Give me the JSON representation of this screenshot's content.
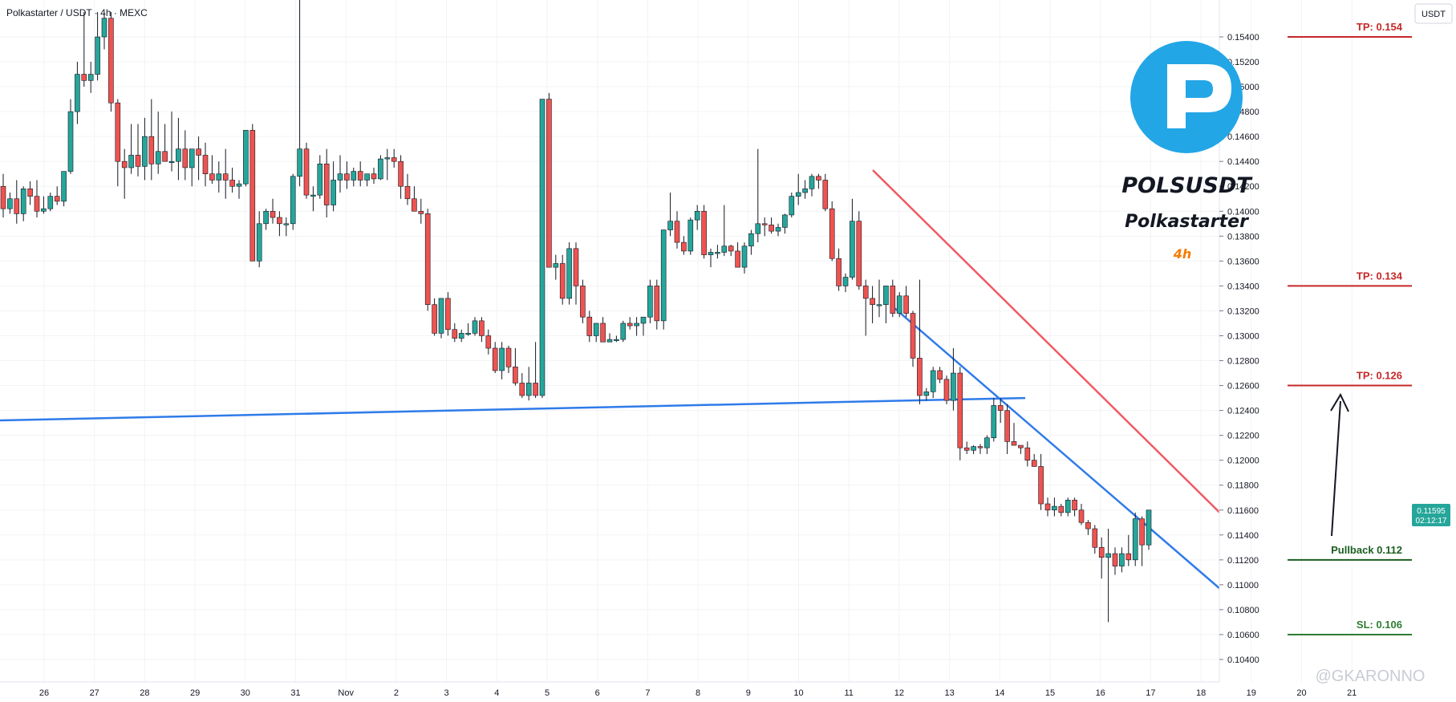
{
  "header": {
    "symbol_line": "Polkastarter / USDT · 4h · MEXC"
  },
  "currency_button": "USDT",
  "logo": {
    "ticker": "POLSUSDT",
    "name": "Polkastarter",
    "timeframe": "4h"
  },
  "watermark": "@GKARONNO",
  "price_tag": {
    "price": "0.11595",
    "countdown": "02:12:17"
  },
  "levels": [
    {
      "label": "TP: 0.154",
      "price": 0.154,
      "color": "#c62828"
    },
    {
      "label": "TP: 0.134",
      "price": 0.134,
      "color": "#c62828"
    },
    {
      "label": "TP: 0.126",
      "price": 0.126,
      "color": "#c62828"
    },
    {
      "label": "Pullback 0.112",
      "price": 0.112,
      "color": "#1b5e20"
    },
    {
      "label": "SL: 0.106",
      "price": 0.106,
      "color": "#2e7d32"
    }
  ],
  "colors": {
    "up": "#26a69a",
    "down": "#ef5350",
    "channel_upper": "#f05a64",
    "channel_lower": "#2f7bea",
    "support": "#2f7bea"
  },
  "chart_data": {
    "type": "candlestick",
    "title": "Polkastarter / USDT · 4h · MEXC",
    "x_ticks": [
      "26",
      "27",
      "28",
      "29",
      "30",
      "31",
      "Nov",
      "2",
      "3",
      "4",
      "5",
      "6",
      "7",
      "8",
      "9",
      "10",
      "11",
      "12",
      "13",
      "14",
      "15",
      "16",
      "17",
      "18",
      "19",
      "20",
      "21"
    ],
    "y_ticks": [
      "0.10400",
      "0.10600",
      "0.10800",
      "0.11000",
      "0.11200",
      "0.11400",
      "0.11600",
      "0.11800",
      "0.12000",
      "0.12200",
      "0.12400",
      "0.12600",
      "0.12800",
      "0.13000",
      "0.13200",
      "0.13400",
      "0.13600",
      "0.13800",
      "0.14000",
      "0.14200",
      "0.14400",
      "0.14600",
      "0.14800",
      "0.15000",
      "0.15200",
      "0.15400"
    ],
    "ylim": [
      0.1026,
      0.1566
    ],
    "ohlc": [
      [
        0.142,
        0.143,
        0.1395,
        0.1402
      ],
      [
        0.1402,
        0.1415,
        0.1398,
        0.141
      ],
      [
        0.141,
        0.1425,
        0.139,
        0.1398
      ],
      [
        0.1398,
        0.142,
        0.1392,
        0.1418
      ],
      [
        0.1418,
        0.1424,
        0.1405,
        0.1412
      ],
      [
        0.1412,
        0.1425,
        0.1395,
        0.14
      ],
      [
        0.14,
        0.1412,
        0.1398,
        0.1402
      ],
      [
        0.1402,
        0.1415,
        0.14,
        0.1412
      ],
      [
        0.1412,
        0.142,
        0.1405,
        0.1408
      ],
      [
        0.1408,
        0.143,
        0.1404,
        0.1432
      ],
      [
        0.1432,
        0.149,
        0.143,
        0.148
      ],
      [
        0.148,
        0.152,
        0.147,
        0.151
      ],
      [
        0.151,
        0.156,
        0.15,
        0.1505
      ],
      [
        0.1505,
        0.152,
        0.1495,
        0.151
      ],
      [
        0.151,
        0.156,
        0.1505,
        0.154
      ],
      [
        0.154,
        0.156,
        0.153,
        0.1555
      ],
      [
        0.1555,
        0.156,
        0.148,
        0.1487
      ],
      [
        0.1487,
        0.149,
        0.142,
        0.144
      ],
      [
        0.144,
        0.145,
        0.141,
        0.1435
      ],
      [
        0.1435,
        0.147,
        0.143,
        0.1445
      ],
      [
        0.1445,
        0.147,
        0.1428,
        0.1436
      ],
      [
        0.1436,
        0.1475,
        0.1425,
        0.146
      ],
      [
        0.146,
        0.149,
        0.1425,
        0.1438
      ],
      [
        0.1438,
        0.148,
        0.143,
        0.1448
      ],
      [
        0.1448,
        0.147,
        0.144,
        0.144
      ],
      [
        0.144,
        0.148,
        0.1432,
        0.144
      ],
      [
        0.144,
        0.1475,
        0.1425,
        0.145
      ],
      [
        0.145,
        0.1465,
        0.1425,
        0.1435
      ],
      [
        0.1435,
        0.145,
        0.142,
        0.145
      ],
      [
        0.145,
        0.146,
        0.1425,
        0.1445
      ],
      [
        0.1445,
        0.1455,
        0.142,
        0.143
      ],
      [
        0.143,
        0.1445,
        0.1422,
        0.1425
      ],
      [
        0.1425,
        0.144,
        0.1415,
        0.143
      ],
      [
        0.143,
        0.145,
        0.141,
        0.1425
      ],
      [
        0.1425,
        0.1435,
        0.1415,
        0.142
      ],
      [
        0.142,
        0.1425,
        0.141,
        0.1422
      ],
      [
        0.1422,
        0.1465,
        0.142,
        0.1465
      ],
      [
        0.1465,
        0.147,
        0.136,
        0.136
      ],
      [
        0.136,
        0.14,
        0.1355,
        0.139
      ],
      [
        0.139,
        0.1402,
        0.1385,
        0.14
      ],
      [
        0.14,
        0.141,
        0.139,
        0.1395
      ],
      [
        0.1395,
        0.14,
        0.138,
        0.139
      ],
      [
        0.139,
        0.1395,
        0.138,
        0.139
      ],
      [
        0.139,
        0.143,
        0.1385,
        0.1428
      ],
      [
        0.1428,
        0.159,
        0.142,
        0.145
      ],
      [
        0.145,
        0.1455,
        0.141,
        0.1413
      ],
      [
        0.1413,
        0.142,
        0.14,
        0.1413
      ],
      [
        0.1413,
        0.1445,
        0.141,
        0.1438
      ],
      [
        0.1438,
        0.145,
        0.1395,
        0.1405
      ],
      [
        0.1405,
        0.144,
        0.14,
        0.1425
      ],
      [
        0.1425,
        0.1445,
        0.1415,
        0.143
      ],
      [
        0.143,
        0.144,
        0.1418,
        0.1425
      ],
      [
        0.1425,
        0.1435,
        0.142,
        0.1432
      ],
      [
        0.1432,
        0.144,
        0.142,
        0.1425
      ],
      [
        0.1425,
        0.143,
        0.142,
        0.143
      ],
      [
        0.143,
        0.1435,
        0.1422,
        0.1426
      ],
      [
        0.1426,
        0.1445,
        0.1425,
        0.1442
      ],
      [
        0.1442,
        0.145,
        0.1425,
        0.1443
      ],
      [
        0.1443,
        0.145,
        0.1435,
        0.144
      ],
      [
        0.144,
        0.1445,
        0.141,
        0.142
      ],
      [
        0.142,
        0.143,
        0.1405,
        0.141
      ],
      [
        0.141,
        0.142,
        0.14,
        0.14
      ],
      [
        0.14,
        0.141,
        0.139,
        0.1398
      ],
      [
        0.1398,
        0.1402,
        0.132,
        0.1325
      ],
      [
        0.1325,
        0.133,
        0.13,
        0.1302
      ],
      [
        0.1302,
        0.133,
        0.1298,
        0.133
      ],
      [
        0.133,
        0.1335,
        0.13,
        0.1305
      ],
      [
        0.1305,
        0.131,
        0.1295,
        0.1298
      ],
      [
        0.1298,
        0.1305,
        0.1295,
        0.1302
      ],
      [
        0.1302,
        0.131,
        0.13,
        0.1302
      ],
      [
        0.1302,
        0.1315,
        0.13,
        0.1312
      ],
      [
        0.1312,
        0.1315,
        0.1295,
        0.13
      ],
      [
        0.13,
        0.1305,
        0.1285,
        0.129
      ],
      [
        0.129,
        0.1295,
        0.127,
        0.1272
      ],
      [
        0.1272,
        0.1295,
        0.1265,
        0.129
      ],
      [
        0.129,
        0.1292,
        0.127,
        0.1275
      ],
      [
        0.1275,
        0.129,
        0.126,
        0.1262
      ],
      [
        0.1262,
        0.127,
        0.125,
        0.1252
      ],
      [
        0.1252,
        0.1275,
        0.1248,
        0.1262
      ],
      [
        0.1262,
        0.1295,
        0.125,
        0.1252
      ],
      [
        0.1252,
        0.149,
        0.125,
        0.149
      ],
      [
        0.149,
        0.1495,
        0.1355,
        0.1355
      ],
      [
        0.1355,
        0.1365,
        0.1345,
        0.1358
      ],
      [
        0.1358,
        0.1365,
        0.1325,
        0.133
      ],
      [
        0.133,
        0.1375,
        0.1325,
        0.137
      ],
      [
        0.137,
        0.1375,
        0.1325,
        0.134
      ],
      [
        0.134,
        0.1345,
        0.131,
        0.1315
      ],
      [
        0.1315,
        0.132,
        0.1295,
        0.13
      ],
      [
        0.13,
        0.131,
        0.1295,
        0.131
      ],
      [
        0.131,
        0.1315,
        0.1295,
        0.1295
      ],
      [
        0.1295,
        0.1302,
        0.1295,
        0.1297
      ],
      [
        0.1297,
        0.13,
        0.1295,
        0.1297
      ],
      [
        0.1297,
        0.1312,
        0.1295,
        0.131
      ],
      [
        0.131,
        0.1315,
        0.1305,
        0.1308
      ],
      [
        0.1308,
        0.1315,
        0.13,
        0.131
      ],
      [
        0.131,
        0.1315,
        0.13,
        0.1315
      ],
      [
        0.1315,
        0.1345,
        0.131,
        0.134
      ],
      [
        0.134,
        0.1345,
        0.1305,
        0.1312
      ],
      [
        0.1312,
        0.1385,
        0.1305,
        0.1385
      ],
      [
        0.1385,
        0.1415,
        0.138,
        0.1392
      ],
      [
        0.1392,
        0.14,
        0.137,
        0.1375
      ],
      [
        0.1375,
        0.138,
        0.1365,
        0.1368
      ],
      [
        0.1368,
        0.1395,
        0.1365,
        0.1393
      ],
      [
        0.1393,
        0.1405,
        0.1385,
        0.14
      ],
      [
        0.14,
        0.1405,
        0.1362,
        0.1365
      ],
      [
        0.1365,
        0.137,
        0.1355,
        0.1367
      ],
      [
        0.1367,
        0.1373,
        0.1362,
        0.1367
      ],
      [
        0.1367,
        0.1405,
        0.1364,
        0.1372
      ],
      [
        0.1372,
        0.1373,
        0.1364,
        0.1368
      ],
      [
        0.1368,
        0.1375,
        0.1355,
        0.1355
      ],
      [
        0.1355,
        0.1375,
        0.135,
        0.1372
      ],
      [
        0.1372,
        0.1385,
        0.1365,
        0.1382
      ],
      [
        0.1382,
        0.145,
        0.1375,
        0.139
      ],
      [
        0.139,
        0.1395,
        0.138,
        0.1389
      ],
      [
        0.1389,
        0.1395,
        0.1382,
        0.1384
      ],
      [
        0.1384,
        0.139,
        0.138,
        0.1387
      ],
      [
        0.1387,
        0.1398,
        0.1382,
        0.1397
      ],
      [
        0.1397,
        0.1415,
        0.1395,
        0.1412
      ],
      [
        0.1412,
        0.143,
        0.1405,
        0.1415
      ],
      [
        0.1415,
        0.1425,
        0.141,
        0.1418
      ],
      [
        0.1418,
        0.143,
        0.1412,
        0.1428
      ],
      [
        0.1428,
        0.143,
        0.1418,
        0.1425
      ],
      [
        0.1425,
        0.143,
        0.14,
        0.1402
      ],
      [
        0.1402,
        0.1408,
        0.136,
        0.1362
      ],
      [
        0.1362,
        0.137,
        0.1336,
        0.134
      ],
      [
        0.134,
        0.135,
        0.1335,
        0.1347
      ],
      [
        0.1347,
        0.141,
        0.1345,
        0.1392
      ],
      [
        0.1392,
        0.14,
        0.1337,
        0.134
      ],
      [
        0.134,
        0.1345,
        0.13,
        0.133
      ],
      [
        0.133,
        0.134,
        0.131,
        0.1325
      ],
      [
        0.1325,
        0.1345,
        0.1315,
        0.1325
      ],
      [
        0.1325,
        0.134,
        0.131,
        0.134
      ],
      [
        0.134,
        0.1345,
        0.1315,
        0.1318
      ],
      [
        0.1318,
        0.1335,
        0.1315,
        0.1332
      ],
      [
        0.1332,
        0.134,
        0.1315,
        0.1318
      ],
      [
        0.1318,
        0.132,
        0.1275,
        0.1282
      ],
      [
        0.1282,
        0.1345,
        0.1245,
        0.1252
      ],
      [
        0.1252,
        0.1258,
        0.1248,
        0.1255
      ],
      [
        0.1255,
        0.1275,
        0.125,
        0.1272
      ],
      [
        0.1272,
        0.1275,
        0.1262,
        0.1265
      ],
      [
        0.1265,
        0.1268,
        0.1245,
        0.1248
      ],
      [
        0.1248,
        0.129,
        0.124,
        0.127
      ],
      [
        0.127,
        0.1275,
        0.12,
        0.121
      ],
      [
        0.121,
        0.1215,
        0.1205,
        0.1208
      ],
      [
        0.1208,
        0.1212,
        0.1205,
        0.1211
      ],
      [
        0.1211,
        0.1213,
        0.1205,
        0.121
      ],
      [
        0.121,
        0.122,
        0.1205,
        0.1218
      ],
      [
        0.1218,
        0.125,
        0.1215,
        0.1244
      ],
      [
        0.1244,
        0.125,
        0.123,
        0.124
      ],
      [
        0.124,
        0.1245,
        0.1205,
        0.1215
      ],
      [
        0.1215,
        0.123,
        0.1212,
        0.1212
      ],
      [
        0.1212,
        0.1212,
        0.1205,
        0.121
      ],
      [
        0.121,
        0.1215,
        0.1195,
        0.12
      ],
      [
        0.12,
        0.1205,
        0.1195,
        0.1195
      ],
      [
        0.1195,
        0.1205,
        0.116,
        0.1165
      ],
      [
        0.1165,
        0.117,
        0.1155,
        0.116
      ],
      [
        0.116,
        0.117,
        0.1155,
        0.1163
      ],
      [
        0.1163,
        0.1165,
        0.1155,
        0.1158
      ],
      [
        0.1158,
        0.117,
        0.1155,
        0.1168
      ],
      [
        0.1168,
        0.117,
        0.1155,
        0.116
      ],
      [
        0.116,
        0.1165,
        0.1148,
        0.115
      ],
      [
        0.115,
        0.1152,
        0.114,
        0.1145
      ],
      [
        0.1145,
        0.1148,
        0.1125,
        0.113
      ],
      [
        0.113,
        0.1138,
        0.1105,
        0.1122
      ],
      [
        0.1122,
        0.1145,
        0.107,
        0.1125
      ],
      [
        0.1125,
        0.113,
        0.1108,
        0.1115
      ],
      [
        0.1115,
        0.113,
        0.111,
        0.1125
      ],
      [
        0.1125,
        0.114,
        0.1115,
        0.112
      ],
      [
        0.112,
        0.1158,
        0.1115,
        0.1153
      ],
      [
        0.1153,
        0.1155,
        0.1115,
        0.1132
      ],
      [
        0.1132,
        0.116,
        0.1128,
        0.116
      ]
    ],
    "annotations": [
      "TP: 0.154",
      "TP: 0.134",
      "TP: 0.126",
      "Pullback 0.112",
      "SL: 0.106"
    ]
  }
}
